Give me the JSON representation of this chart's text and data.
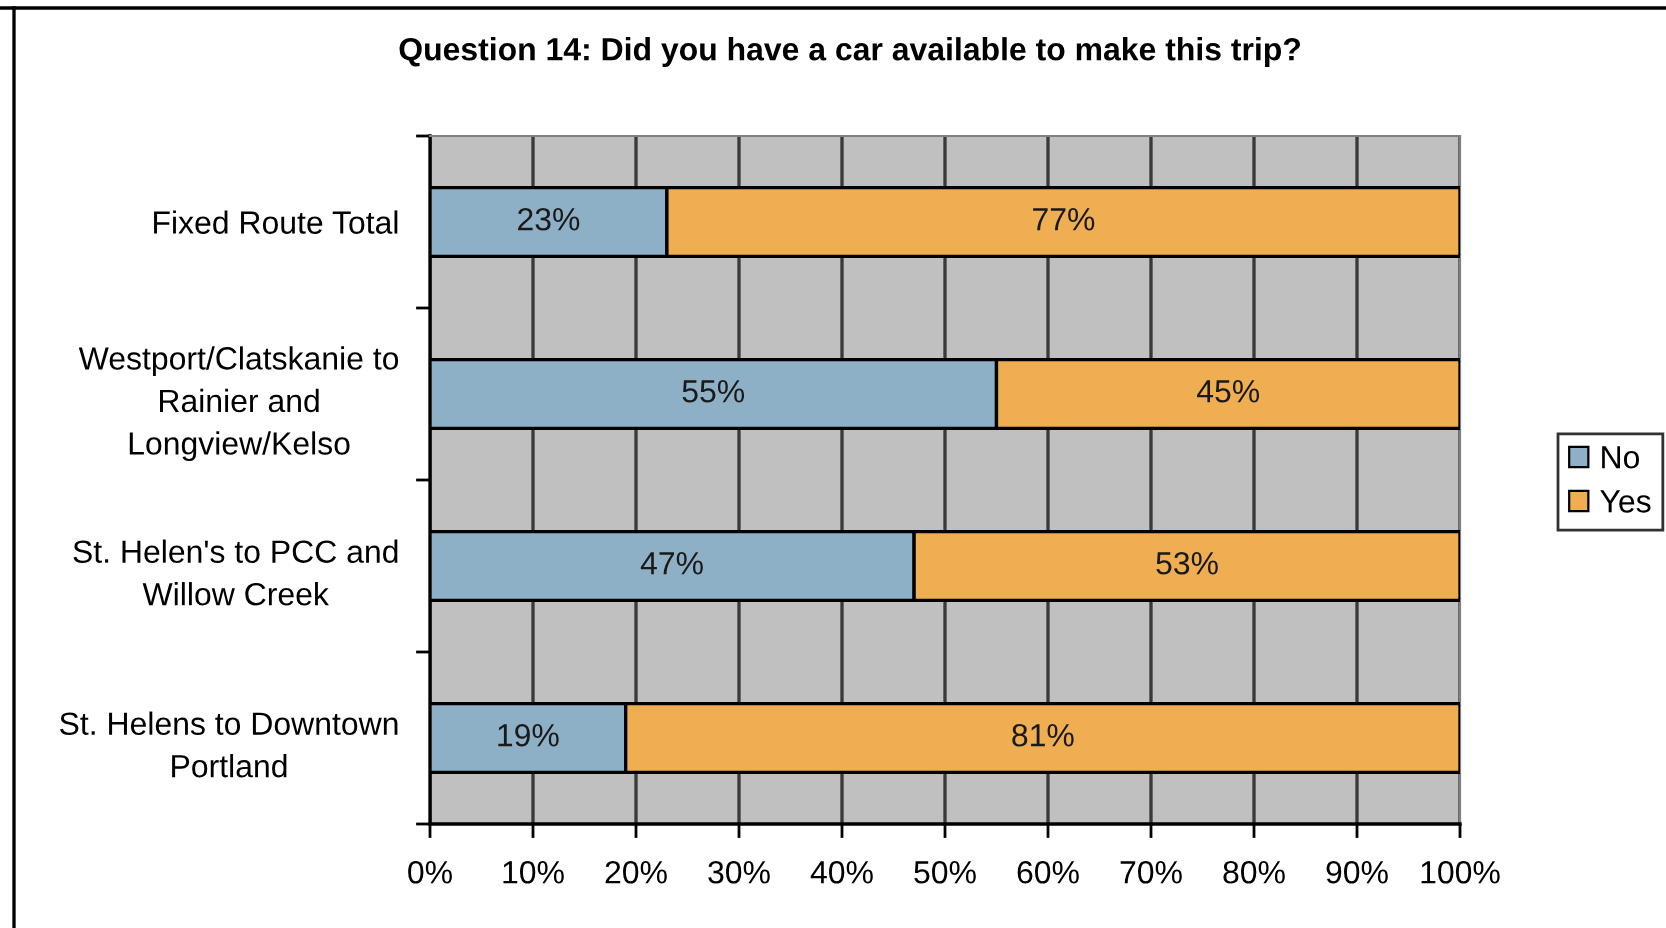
{
  "chart_data": {
    "type": "bar",
    "orientation": "horizontal",
    "stacked": true,
    "title": "Question 14: Did you have a car available to make this trip?",
    "categories": [
      "Fixed Route Total",
      "Westport/Clatskanie to\nRainier and\nLongview/Kelso",
      "St. Helen's to PCC and\nWillow Creek",
      "St. Helens to Downtown\nPortland"
    ],
    "series": [
      {
        "name": "No",
        "color": "#8eb0c6",
        "values": [
          23,
          55,
          47,
          19
        ],
        "value_labels": [
          "23%",
          "55%",
          "47%",
          "19%"
        ]
      },
      {
        "name": "Yes",
        "color": "#f0ae52",
        "values": [
          77,
          45,
          53,
          81
        ],
        "value_labels": [
          "77%",
          "45%",
          "53%",
          "81%"
        ]
      }
    ],
    "xlim": [
      0,
      100
    ],
    "xticks": [
      {
        "value": 0,
        "label": "0%"
      },
      {
        "value": 10,
        "label": "10%"
      },
      {
        "value": 20,
        "label": "20%"
      },
      {
        "value": 30,
        "label": "30%"
      },
      {
        "value": 40,
        "label": "40%"
      },
      {
        "value": 50,
        "label": "50%"
      },
      {
        "value": 60,
        "label": "60%"
      },
      {
        "value": 70,
        "label": "70%"
      },
      {
        "value": 80,
        "label": "80%"
      },
      {
        "value": 90,
        "label": "90%"
      },
      {
        "value": 100,
        "label": "100%"
      }
    ],
    "grid": "x",
    "legend": "right"
  }
}
